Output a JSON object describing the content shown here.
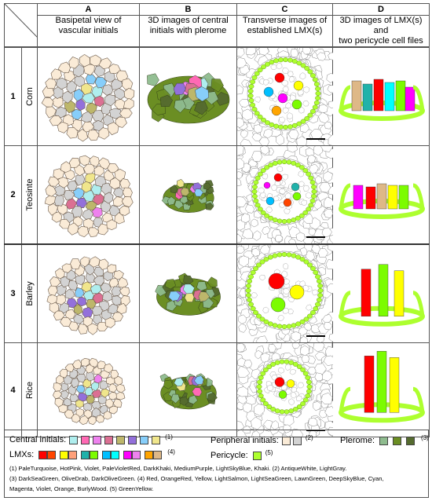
{
  "columns": [
    {
      "letter": "A",
      "title_line1": "Basipetal view of",
      "title_line2": "vascular initials"
    },
    {
      "letter": "B",
      "title_line1": "3D images of central",
      "title_line2": "initials with plerome"
    },
    {
      "letter": "C",
      "title_line1": "Transverse images of",
      "title_line2": "established LMX(s)"
    },
    {
      "letter": "D",
      "title_line1": "3D images of LMX(s) and",
      "title_line2": "two pericycle cell files"
    }
  ],
  "rows": [
    {
      "number": "1",
      "species": "Corn"
    },
    {
      "number": "2",
      "species": "Teosinte"
    },
    {
      "number": "3",
      "species": "Barley"
    },
    {
      "number": "4",
      "species": "Rice"
    }
  ],
  "legend": {
    "central_label": "Central initials:",
    "central_ref": "(1)",
    "central_colors": [
      "#AFEEEE",
      "#FF69B4",
      "#EE82EE",
      "#DB7093",
      "#BDB76B",
      "#9370DB",
      "#87CEFA",
      "#F0E68C"
    ],
    "peripheral_label": "Peripheral initials:",
    "peripheral_ref": "(2)",
    "peripheral_colors": [
      "#FAEBD7",
      "#D3D3D3"
    ],
    "plerome_label": "Plerome:",
    "plerome_ref": "(3)",
    "plerome_colors": [
      "#8FBC8F",
      "#6B8E23",
      "#556B2F"
    ],
    "lmx_label": "LMXs:",
    "lmx_ref": "(4)",
    "lmx_colors": [
      "#FF0000",
      "#FF4500",
      "#FFFF00",
      "#FFA07A",
      "#20B2AA",
      "#7CFC00",
      "#00BFFF",
      "#00FFFF",
      "#FF00FF",
      "#EE82EE",
      "#FFA500",
      "#DEB887"
    ],
    "pericycle_label": "Pericycle:",
    "pericycle_ref": "(5)",
    "pericycle_colors": [
      "#ADFF2F"
    ],
    "note_line1": "(1) PaleTurquoise, HotPink, Violet, PaleVioletRed, DarkKhaki, MediumPurple, LightSkyBlue, Khaki. (2) AntiqueWhite, LightGray.",
    "note_line2": "(3) DarkSeaGreen, OliveDrab, DarkOliveGreen. (4) Red, OrangeRed, Yellow, LightSalmon, LightSeaGreen, LawnGreen, DeepSkyBlue, Cyan,",
    "note_line3": "Magenta, Violet, Orange, BurlyWood. (5) GreenYellow."
  }
}
